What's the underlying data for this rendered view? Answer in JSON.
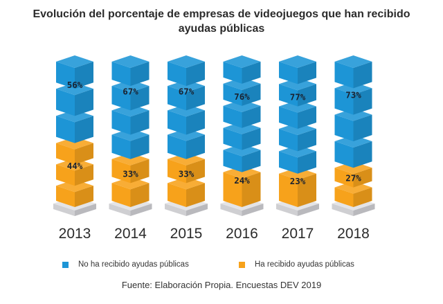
{
  "chart_data": {
    "type": "bar",
    "stacked": true,
    "title": "Evolución del porcentaje de empresas de videojuegos que han recibido ayudas públicas",
    "title_lines": [
      "Evolución del porcentaje de empresas de videojuegos que han recibido",
      "ayudas públicas"
    ],
    "categories": [
      "2013",
      "2014",
      "2015",
      "2016",
      "2017",
      "2018"
    ],
    "series": [
      {
        "name": "No ha recibido ayudas públicas",
        "color": "#1d95d6",
        "values": [
          56,
          67,
          67,
          76,
          77,
          73
        ],
        "labels": [
          "56%",
          "67%",
          "67%",
          "76%",
          "77%",
          "73%"
        ]
      },
      {
        "name": "Ha recibido ayudas públicas",
        "color": "#f7a21b",
        "values": [
          44,
          33,
          33,
          24,
          23,
          27
        ],
        "labels": [
          "44%",
          "33%",
          "33%",
          "24%",
          "23%",
          "27%"
        ]
      }
    ],
    "ylim": [
      0,
      100
    ],
    "legend_position": "bottom",
    "source": "Fuente: Elaboración Propia. Encuestas DEV 2019"
  }
}
